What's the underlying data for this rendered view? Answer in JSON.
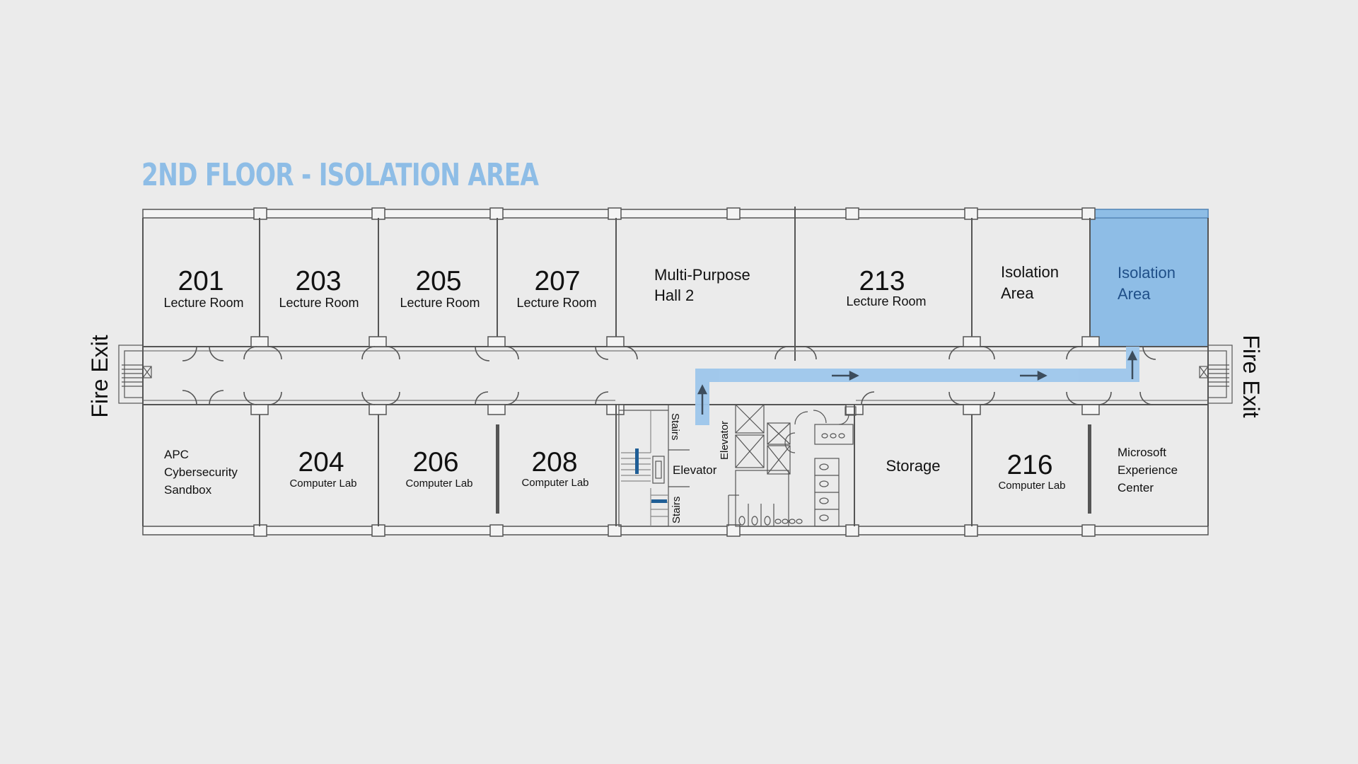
{
  "title": "2ND FLOOR - ISOLATION AREA",
  "colors": {
    "highlight": "#8ebde6",
    "route": "#9ec7ec",
    "arrow": "#3d4d5c",
    "title": "#8ebde6"
  },
  "fire_exit_left": "Fire Exit",
  "fire_exit_right": "Fire Exit",
  "rooms_top": [
    {
      "number": "201",
      "type": "Lecture Room"
    },
    {
      "number": "203",
      "type": "Lecture Room"
    },
    {
      "number": "205",
      "type": "Lecture Room"
    },
    {
      "number": "207",
      "type": "Lecture Room"
    },
    {
      "name_line1": "Multi-Purpose",
      "name_line2": "Hall 2"
    },
    {
      "number": "213",
      "type": "Lecture Room"
    },
    {
      "name_line1": "Isolation",
      "name_line2": "Area"
    },
    {
      "name_line1": "Isolation",
      "name_line2": "Area",
      "highlighted": true
    }
  ],
  "rooms_bottom": [
    {
      "name_line1": "APC",
      "name_line2": "Cybersecurity",
      "name_line3": "Sandbox"
    },
    {
      "number": "204",
      "type": "Computer Lab"
    },
    {
      "number": "206",
      "type": "Computer Lab"
    },
    {
      "number": "208",
      "type": "Computer Lab"
    },
    {
      "name": "Storage"
    },
    {
      "number": "216",
      "type": "Computer Lab"
    },
    {
      "name_line1": "Microsoft",
      "name_line2": "Experience",
      "name_line3": "Center"
    }
  ],
  "core": {
    "stairs_upper": "Stairs",
    "stairs_lower": "Stairs",
    "elevator": "Elevator",
    "elevator_vertical": "Elevator"
  },
  "route_arrows": [
    "up-arrow-icon",
    "right-arrow-icon",
    "right-arrow-icon",
    "up-arrow-icon"
  ]
}
